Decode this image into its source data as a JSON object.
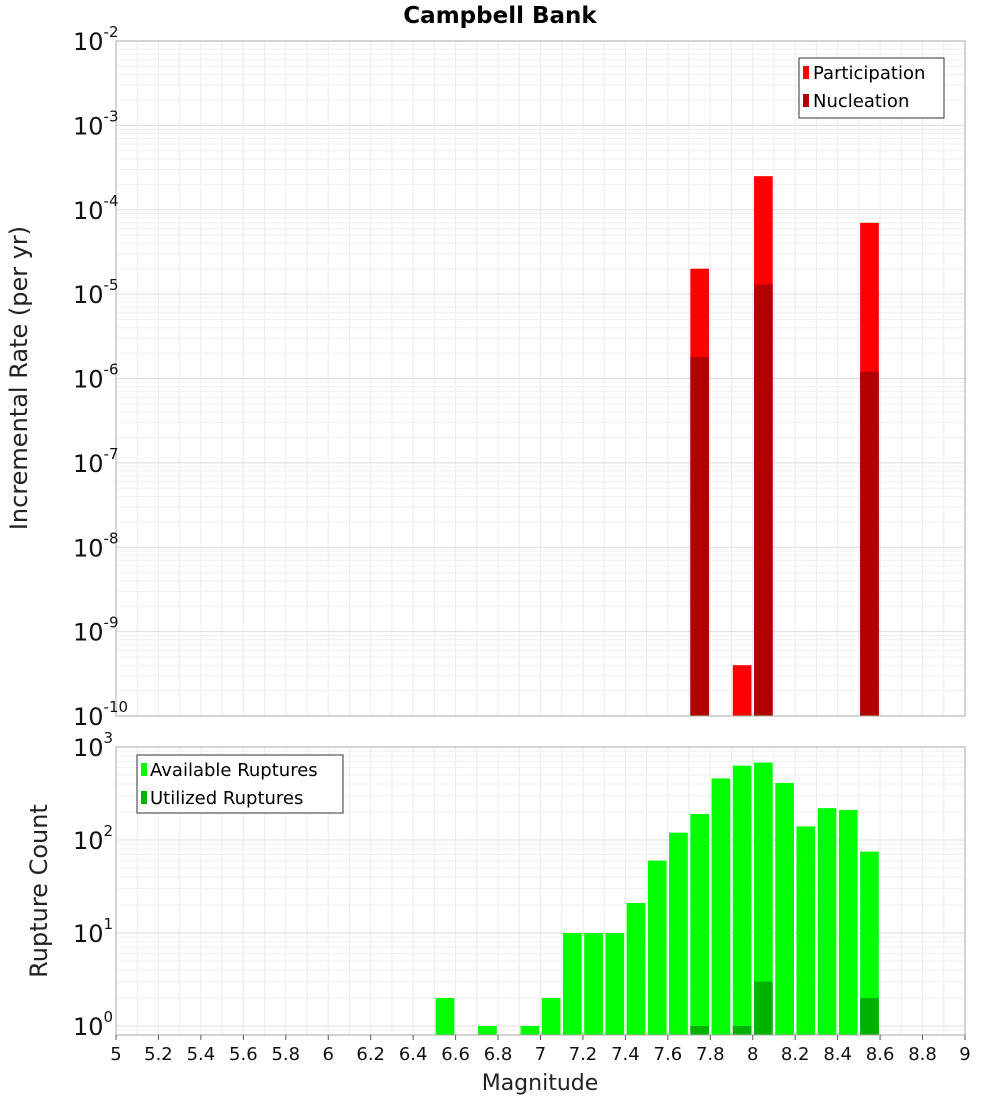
{
  "chart_data": [
    {
      "type": "bar",
      "title": "Campbell Bank",
      "xlabel": "",
      "ylabel": "Incremental Rate (per yr)",
      "yscale": "log",
      "ylim": [
        1e-10,
        0.01
      ],
      "xlim": [
        5,
        9
      ],
      "bin_width": 0.1,
      "grid": true,
      "legend_position": "top-right",
      "y_tick_exponents": [
        "-10",
        "-9",
        "-8",
        "-7",
        "-6",
        "-5",
        "-4",
        "-3",
        "-2"
      ],
      "series": [
        {
          "name": "Participation",
          "color": "#ff0000",
          "points": [
            {
              "x": 7.75,
              "y": 2e-05
            },
            {
              "x": 7.95,
              "y": 4e-10
            },
            {
              "x": 8.05,
              "y": 0.00025
            },
            {
              "x": 8.55,
              "y": 7e-05
            }
          ]
        },
        {
          "name": "Nucleation",
          "color": "#b20000",
          "points": [
            {
              "x": 7.75,
              "y": 1.8e-06
            },
            {
              "x": 8.05,
              "y": 1.3e-05
            },
            {
              "x": 8.55,
              "y": 1.2e-06
            }
          ]
        }
      ]
    },
    {
      "type": "bar",
      "title": "",
      "xlabel": "Magnitude",
      "ylabel": "Rupture Count",
      "yscale": "log",
      "ylim": [
        0.8,
        1000
      ],
      "xlim": [
        5,
        9
      ],
      "bin_width": 0.1,
      "grid": true,
      "legend_position": "top-left",
      "x_ticks": [
        "5",
        "5.2",
        "5.4",
        "5.6",
        "5.8",
        "6",
        "6.2",
        "6.4",
        "6.6",
        "6.8",
        "7",
        "7.2",
        "7.4",
        "7.6",
        "7.8",
        "8",
        "8.2",
        "8.4",
        "8.6",
        "8.8",
        "9"
      ],
      "y_tick_exponents": [
        "0",
        "1",
        "2",
        "3"
      ],
      "series": [
        {
          "name": "Available Ruptures",
          "color": "#00ff00",
          "points": [
            {
              "x": 6.55,
              "y": 2
            },
            {
              "x": 6.75,
              "y": 1
            },
            {
              "x": 6.95,
              "y": 1
            },
            {
              "x": 7.05,
              "y": 2
            },
            {
              "x": 7.15,
              "y": 10
            },
            {
              "x": 7.25,
              "y": 10
            },
            {
              "x": 7.35,
              "y": 10
            },
            {
              "x": 7.45,
              "y": 21
            },
            {
              "x": 7.55,
              "y": 60
            },
            {
              "x": 7.65,
              "y": 120
            },
            {
              "x": 7.75,
              "y": 190
            },
            {
              "x": 7.85,
              "y": 460
            },
            {
              "x": 7.95,
              "y": 630
            },
            {
              "x": 8.05,
              "y": 680
            },
            {
              "x": 8.15,
              "y": 410
            },
            {
              "x": 8.25,
              "y": 140
            },
            {
              "x": 8.35,
              "y": 220
            },
            {
              "x": 8.45,
              "y": 210
            },
            {
              "x": 8.55,
              "y": 75
            }
          ]
        },
        {
          "name": "Utilized Ruptures",
          "color": "#00b200",
          "points": [
            {
              "x": 7.75,
              "y": 1
            },
            {
              "x": 7.95,
              "y": 1
            },
            {
              "x": 8.05,
              "y": 3
            },
            {
              "x": 8.55,
              "y": 2
            }
          ]
        }
      ]
    }
  ]
}
